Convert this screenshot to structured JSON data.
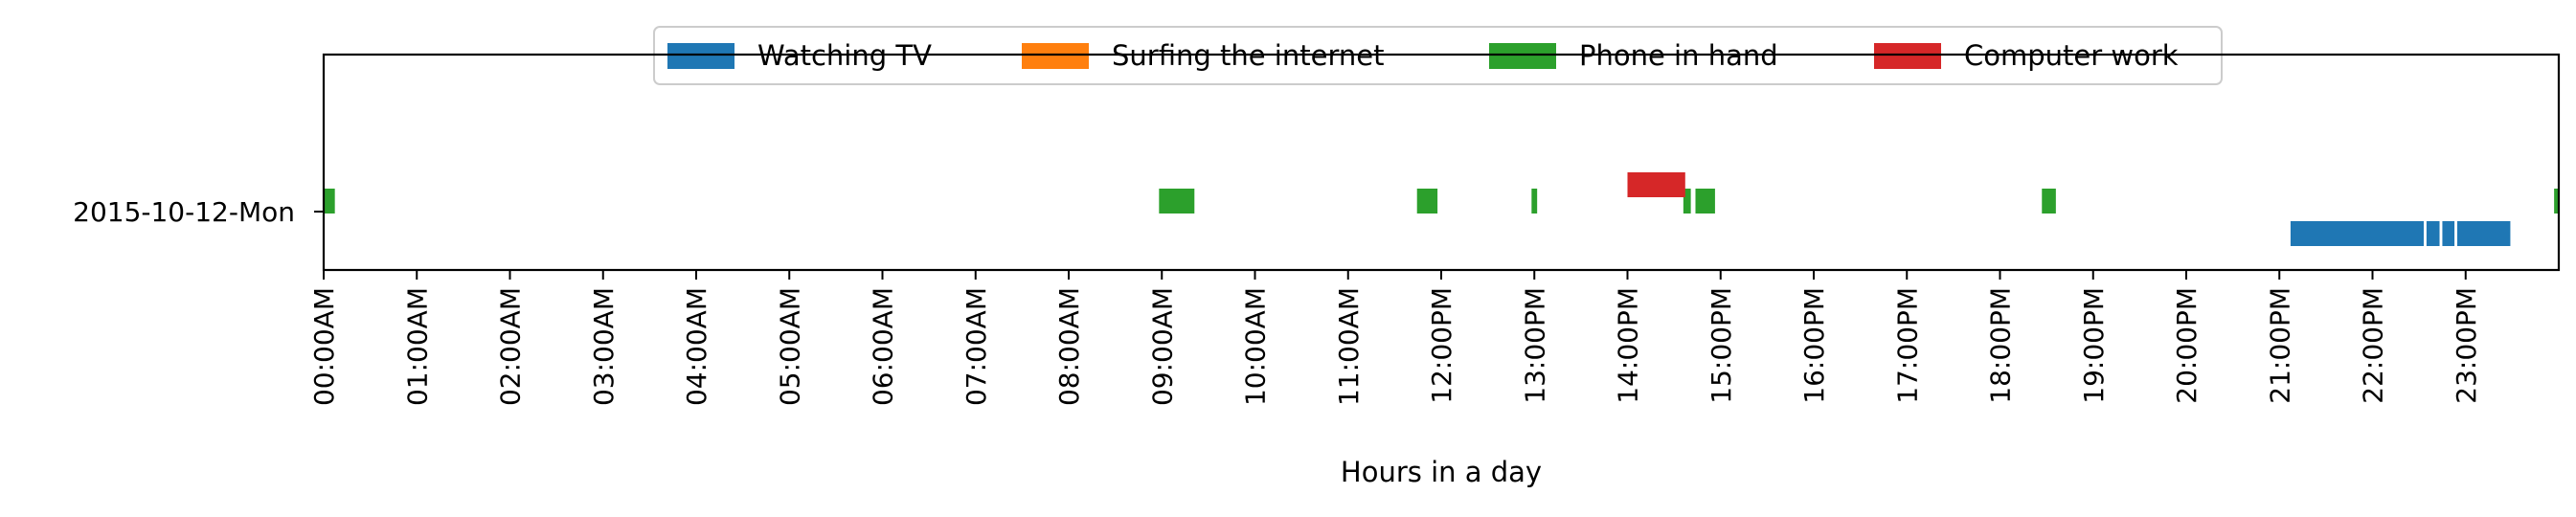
{
  "chart_data": {
    "type": "timeline",
    "xlabel": "Hours in a day",
    "ylabel": "",
    "xlim": [
      0,
      24
    ],
    "x_unit": "hour of day",
    "categories": [
      "2015-10-12-Mon"
    ],
    "x_ticks": [
      "00:00AM",
      "01:00AM",
      "02:00AM",
      "03:00AM",
      "04:00AM",
      "05:00AM",
      "06:00AM",
      "07:00AM",
      "08:00AM",
      "09:00AM",
      "10:00AM",
      "11:00AM",
      "12:00PM",
      "13:00PM",
      "14:00PM",
      "15:00PM",
      "16:00PM",
      "17:00PM",
      "18:00PM",
      "19:00PM",
      "20:00PM",
      "21:00PM",
      "22:00PM",
      "23:00PM"
    ],
    "legend_position": "top-center",
    "grid": false,
    "series": [
      {
        "name": "Watching TV",
        "color": "#1f77b4",
        "intervals": [
          [
            21.12,
            22.55
          ],
          [
            22.58,
            22.72
          ],
          [
            22.75,
            22.88
          ],
          [
            22.91,
            23.48
          ]
        ]
      },
      {
        "name": "Surfing the internet",
        "color": "#ff7f0e",
        "intervals": []
      },
      {
        "name": "Phone in hand",
        "color": "#2ca02c",
        "intervals": [
          [
            0.0,
            0.12
          ],
          [
            8.97,
            9.35
          ],
          [
            11.74,
            11.96
          ],
          [
            12.97,
            13.03
          ],
          [
            14.6,
            14.68
          ],
          [
            14.73,
            14.94
          ],
          [
            18.45,
            18.6
          ],
          [
            23.95,
            24.0
          ]
        ]
      },
      {
        "name": "Computer work",
        "color": "#d62728",
        "intervals": [
          [
            14.0,
            14.62
          ]
        ]
      }
    ]
  }
}
